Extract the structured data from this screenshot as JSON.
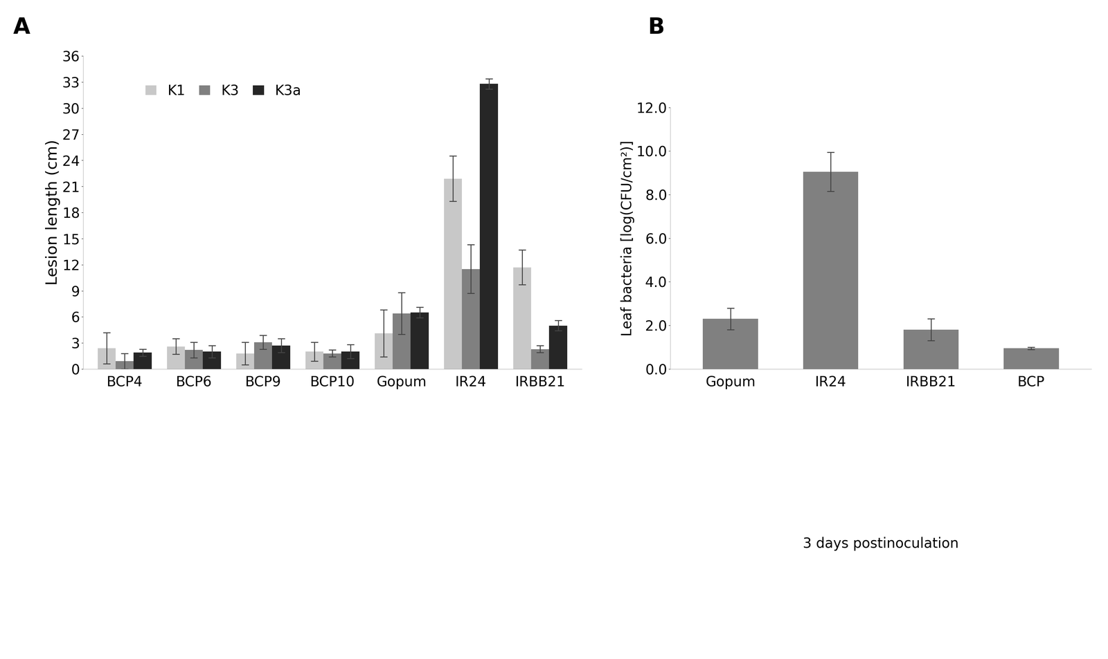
{
  "chart_data": [
    {
      "type": "bar",
      "panel_label": "A",
      "y_label": "Lesion length (cm)",
      "categories": [
        "BCP4",
        "BCP6",
        "BCP9",
        "BCP10",
        "Gopum",
        "IR24",
        "IRBB21"
      ],
      "series": [
        {
          "name": "K1",
          "color": "#c8c8c8",
          "values": [
            2.4,
            2.6,
            1.8,
            2.0,
            4.1,
            21.9,
            11.7
          ],
          "errors": [
            1.8,
            0.9,
            1.3,
            1.1,
            2.7,
            2.6,
            2.0
          ]
        },
        {
          "name": "K3",
          "color": "#808080",
          "values": [
            0.9,
            2.2,
            3.1,
            1.8,
            6.4,
            11.5,
            2.3
          ],
          "errors": [
            0.9,
            0.9,
            0.8,
            0.4,
            2.4,
            2.8,
            0.4
          ]
        },
        {
          "name": "K3a",
          "color": "#262626",
          "values": [
            1.9,
            2.0,
            2.7,
            2.0,
            6.5,
            32.8,
            5.0
          ],
          "errors": [
            0.4,
            0.7,
            0.8,
            0.8,
            0.6,
            0.6,
            0.6
          ]
        }
      ],
      "ylim": [
        0,
        36
      ],
      "yticks": [
        0,
        3,
        6,
        9,
        12,
        15,
        18,
        21,
        24,
        27,
        30,
        33,
        36
      ],
      "legend": "upper left"
    },
    {
      "type": "bar",
      "panel_label": "B",
      "y_label": "Leaf bacteria [log(CFU/cm²)]",
      "note": "3 days postinoculation",
      "categories": [
        "Gopum",
        "IR24",
        "IRBB21",
        "BCP"
      ],
      "values": [
        2.3,
        9.05,
        1.8,
        0.95
      ],
      "errors": [
        0.5,
        0.9,
        0.5,
        0.05
      ],
      "color": "#808080",
      "ylim": [
        0,
        12
      ],
      "yticks": [
        {
          "value": 0,
          "label": "0.0"
        },
        {
          "value": 2,
          "label": "2.0"
        },
        {
          "value": 4,
          "label": "4.0"
        },
        {
          "value": 6,
          "label": "6.0"
        },
        {
          "value": 8,
          "label": "8.0"
        },
        {
          "value": 10,
          "label": "10.0"
        },
        {
          "value": 12,
          "label": "12.0"
        }
      ]
    }
  ]
}
